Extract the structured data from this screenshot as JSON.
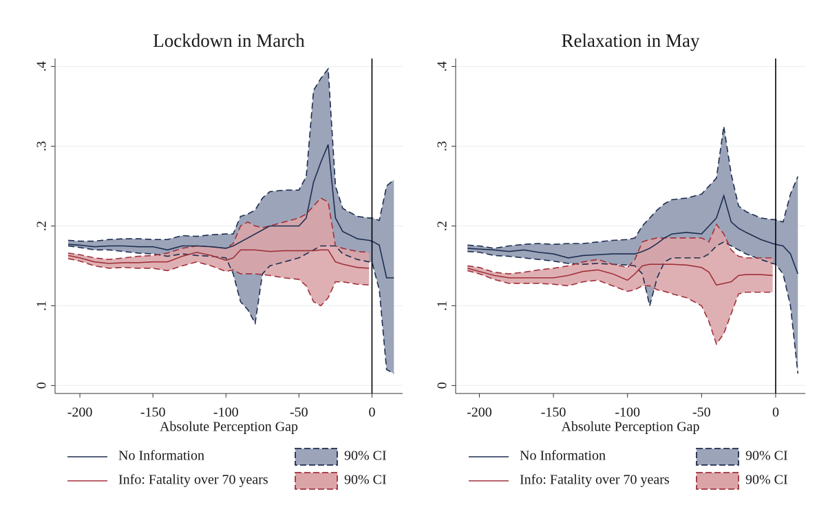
{
  "chart_data": [
    {
      "type": "line",
      "title": "Lockdown in March",
      "x_label": "Absolute Perception Gap",
      "x": [
        -208,
        -200,
        -190,
        -180,
        -170,
        -160,
        -150,
        -140,
        -130,
        -120,
        -110,
        -100,
        -95,
        -90,
        -85,
        -80,
        -75,
        -70,
        -60,
        -50,
        -45,
        -40,
        -35,
        -30,
        -25,
        -20,
        -10,
        -2,
        0,
        5,
        10,
        15
      ],
      "xlim": [
        -217,
        21
      ],
      "xticks": [
        -200,
        -150,
        -100,
        -50,
        0
      ],
      "ylim": [
        -0.01,
        0.41
      ],
      "yticks": [
        0,
        {
          "value": 0.1,
          "label": ".1"
        },
        {
          "value": 0.2,
          "label": ".2"
        },
        {
          "value": 0.3,
          "label": ".3"
        },
        {
          "value": 0.4,
          "label": ".4"
        }
      ],
      "grid": true,
      "xline": 0,
      "series": [
        {
          "name": "No Information",
          "color": "#1c2d4f",
          "values": [
            0.177,
            0.176,
            0.174,
            0.175,
            0.175,
            0.174,
            0.174,
            0.17,
            0.175,
            0.175,
            0.174,
            0.172,
            0.175,
            0.18,
            0.185,
            0.19,
            0.195,
            0.2,
            0.2,
            0.2,
            0.21,
            0.255,
            0.28,
            0.302,
            0.21,
            0.193,
            0.184,
            0.182,
            0.181,
            0.176,
            0.135,
            0.135
          ]
        },
        {
          "name": "Info: Fatality over 70 years",
          "color": "#a0303a",
          "values": [
            0.163,
            0.16,
            0.155,
            0.153,
            0.154,
            0.154,
            0.155,
            0.155,
            0.162,
            0.167,
            0.163,
            0.157,
            0.16,
            0.17,
            0.17,
            0.17,
            0.169,
            0.168,
            0.169,
            0.169,
            0.169,
            0.169,
            0.17,
            0.17,
            0.155,
            0.152,
            0.148,
            0.147,
            null,
            null,
            null,
            null
          ]
        }
      ],
      "bands": [
        {
          "name": "90% CI",
          "color": "#9ca4b9",
          "edge_color": "#1c2d4f",
          "upper": [
            0.182,
            0.181,
            0.181,
            0.183,
            0.184,
            0.184,
            0.183,
            0.183,
            0.188,
            0.187,
            0.189,
            0.19,
            0.19,
            0.212,
            0.215,
            0.22,
            0.235,
            0.243,
            0.245,
            0.245,
            0.262,
            0.37,
            0.385,
            0.397,
            0.25,
            0.222,
            0.212,
            0.21,
            0.21,
            0.207,
            0.25,
            0.258
          ],
          "lower": [
            0.175,
            0.173,
            0.17,
            0.17,
            0.168,
            0.166,
            0.165,
            0.162,
            0.165,
            0.163,
            0.162,
            0.16,
            0.14,
            0.105,
            0.095,
            0.078,
            0.14,
            0.15,
            0.155,
            0.16,
            0.165,
            0.17,
            0.175,
            0.175,
            0.175,
            0.165,
            0.158,
            0.155,
            0.155,
            0.12,
            0.02,
            0.015
          ]
        },
        {
          "name": "90% CI",
          "color": "#dba5a8",
          "edge_color": "#a0303a",
          "upper": [
            0.166,
            0.164,
            0.16,
            0.158,
            0.16,
            0.162,
            0.163,
            0.166,
            0.172,
            0.175,
            0.174,
            0.172,
            0.178,
            0.2,
            0.205,
            0.2,
            0.198,
            0.2,
            0.205,
            0.21,
            0.215,
            0.225,
            0.235,
            0.23,
            0.175,
            0.172,
            0.168,
            0.167,
            null,
            null,
            null,
            null
          ],
          "lower": [
            0.159,
            0.156,
            0.15,
            0.147,
            0.148,
            0.147,
            0.147,
            0.144,
            0.15,
            0.155,
            0.15,
            0.143,
            0.145,
            0.14,
            0.14,
            0.14,
            0.139,
            0.138,
            0.135,
            0.133,
            0.125,
            0.105,
            0.1,
            0.11,
            0.13,
            0.13,
            0.127,
            0.126,
            null,
            null,
            null,
            null
          ]
        }
      ]
    },
    {
      "type": "line",
      "title": "Relaxation in May",
      "x_label": "Absolute Perception Gap",
      "x": [
        -208,
        -200,
        -190,
        -180,
        -170,
        -160,
        -150,
        -140,
        -130,
        -120,
        -110,
        -100,
        -95,
        -90,
        -85,
        -80,
        -75,
        -70,
        -60,
        -50,
        -45,
        -40,
        -35,
        -30,
        -25,
        -20,
        -10,
        -2,
        0,
        5,
        10,
        15
      ],
      "xlim": [
        -216,
        20
      ],
      "xticks": [
        -200,
        -150,
        -100,
        -50,
        0
      ],
      "ylim": [
        -0.01,
        0.41
      ],
      "yticks": [
        0,
        {
          "value": 0.1,
          "label": ".1"
        },
        {
          "value": 0.2,
          "label": ".2"
        },
        {
          "value": 0.3,
          "label": ".3"
        },
        {
          "value": 0.4,
          "label": ".4"
        }
      ],
      "grid": true,
      "xline": 0,
      "series": [
        {
          "name": "No Information",
          "color": "#1c2d4f",
          "values": [
            0.172,
            0.171,
            0.17,
            0.168,
            0.17,
            0.167,
            0.165,
            0.16,
            0.163,
            0.164,
            0.165,
            0.165,
            0.165,
            0.168,
            0.172,
            0.178,
            0.185,
            0.19,
            0.192,
            0.19,
            0.2,
            0.21,
            0.238,
            0.205,
            0.197,
            0.192,
            0.183,
            0.178,
            0.177,
            0.175,
            0.165,
            0.14
          ]
        },
        {
          "name": "Info: Fatality over 70 years",
          "color": "#a0303a",
          "values": [
            0.147,
            0.143,
            0.138,
            0.135,
            0.135,
            0.135,
            0.135,
            0.138,
            0.143,
            0.145,
            0.14,
            0.132,
            0.14,
            0.15,
            0.152,
            0.152,
            0.152,
            0.152,
            0.151,
            0.148,
            0.142,
            0.126,
            0.128,
            0.13,
            0.138,
            0.139,
            0.139,
            0.138,
            null,
            null,
            null,
            null
          ]
        }
      ],
      "bands": [
        {
          "name": "90% CI",
          "color": "#9ca4b9",
          "edge_color": "#1c2d4f",
          "upper": [
            0.176,
            0.175,
            0.172,
            0.175,
            0.177,
            0.178,
            0.177,
            0.178,
            0.178,
            0.18,
            0.182,
            0.183,
            0.185,
            0.2,
            0.21,
            0.22,
            0.228,
            0.233,
            0.235,
            0.24,
            0.25,
            0.26,
            0.325,
            0.265,
            0.225,
            0.218,
            0.21,
            0.208,
            0.208,
            0.205,
            0.24,
            0.262
          ],
          "lower": [
            0.168,
            0.167,
            0.163,
            0.162,
            0.16,
            0.158,
            0.156,
            0.153,
            0.152,
            0.153,
            0.152,
            0.151,
            0.15,
            0.14,
            0.1,
            0.135,
            0.155,
            0.16,
            0.16,
            0.16,
            0.165,
            0.175,
            0.18,
            0.175,
            0.17,
            0.165,
            0.158,
            0.153,
            0.152,
            0.14,
            0.1,
            0.015
          ]
        },
        {
          "name": "90% CI",
          "color": "#dba5a8",
          "edge_color": "#a0303a",
          "upper": [
            0.15,
            0.148,
            0.142,
            0.14,
            0.142,
            0.145,
            0.147,
            0.15,
            0.155,
            0.158,
            0.152,
            0.148,
            0.158,
            0.18,
            0.183,
            0.185,
            0.185,
            0.185,
            0.185,
            0.185,
            0.18,
            0.202,
            0.19,
            0.17,
            0.162,
            0.16,
            0.16,
            0.16,
            null,
            null,
            null,
            null
          ],
          "lower": [
            0.144,
            0.14,
            0.133,
            0.128,
            0.128,
            0.128,
            0.127,
            0.125,
            0.13,
            0.132,
            0.125,
            0.118,
            0.12,
            0.125,
            0.125,
            0.12,
            0.118,
            0.115,
            0.11,
            0.1,
            0.08,
            0.052,
            0.065,
            0.09,
            0.115,
            0.117,
            0.117,
            0.117,
            null,
            null,
            null,
            null
          ]
        }
      ]
    }
  ]
}
